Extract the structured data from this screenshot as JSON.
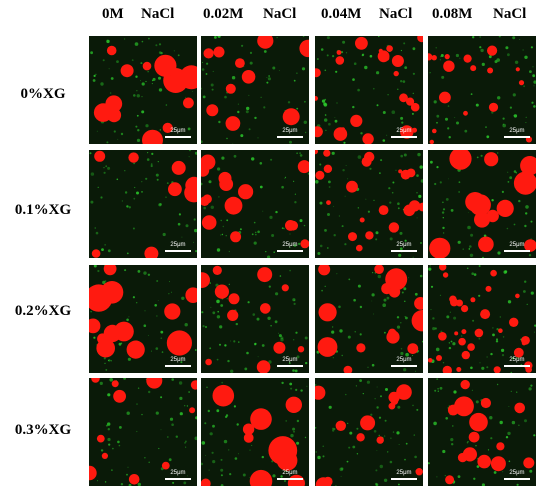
{
  "columns": [
    {
      "conc": "0M",
      "salt": "NaCl"
    },
    {
      "conc": "0.02M",
      "salt": "NaCl"
    },
    {
      "conc": "0.04M",
      "salt": "NaCl"
    },
    {
      "conc": "0.08M",
      "salt": "NaCl"
    }
  ],
  "rows": [
    {
      "label": "0%XG"
    },
    {
      "label": "0.1%XG"
    },
    {
      "label": "0.2%XG"
    },
    {
      "label": "0.3%XG"
    }
  ],
  "scale_bar_label": "25μm",
  "colors": {
    "oil_droplet": "#ff1a10",
    "protein": "#2ccf2c",
    "background": "#0a1a08"
  }
}
